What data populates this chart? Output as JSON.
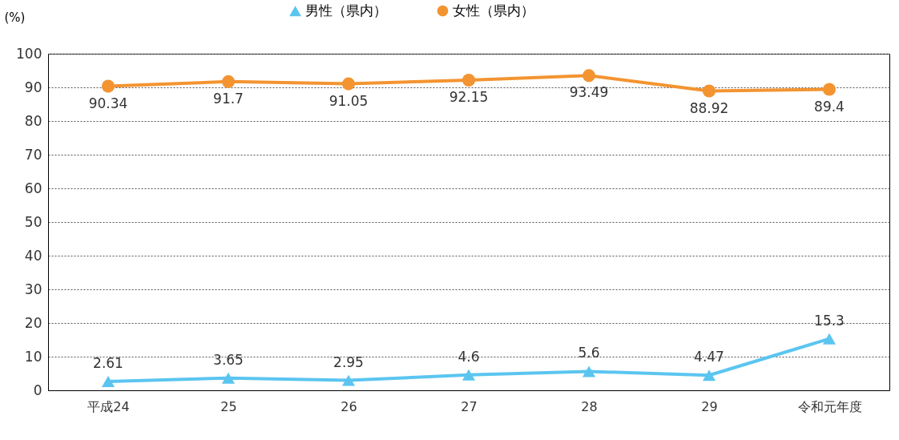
{
  "chart_data": {
    "type": "line",
    "ylabel": "(%)",
    "categories": [
      "平成24",
      "25",
      "26",
      "27",
      "28",
      "29",
      "令和元年度"
    ],
    "series": [
      {
        "name": "男性（県内）",
        "color": "#5bc5f0",
        "marker": "triangle",
        "values": [
          2.61,
          3.65,
          2.95,
          4.6,
          5.6,
          4.47,
          15.3
        ]
      },
      {
        "name": "女性（県内）",
        "color": "#f39431",
        "marker": "circle",
        "values": [
          90.34,
          91.7,
          91.05,
          92.15,
          93.49,
          88.92,
          89.4
        ]
      }
    ],
    "ylim": [
      0,
      100
    ],
    "yticks": [
      0,
      10,
      20,
      30,
      40,
      50,
      60,
      70,
      80,
      90,
      100
    ],
    "grid": "y",
    "legend": "top",
    "data_labels": true,
    "line_style": "solid"
  }
}
